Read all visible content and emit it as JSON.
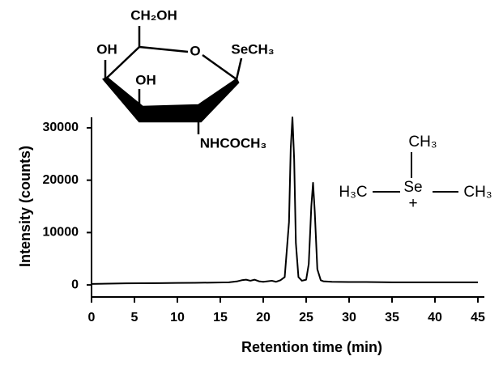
{
  "chart_data": {
    "type": "line",
    "xlabel": "Retention time (min)",
    "ylabel": "Intensity (counts)",
    "x": [
      0,
      2,
      4,
      6,
      8,
      10,
      12,
      14,
      16,
      17,
      17.5,
      18,
      18.5,
      19,
      19.5,
      20,
      21,
      21.5,
      22,
      22.5,
      23,
      23.2,
      23.4,
      23.6,
      23.8,
      24.1,
      24.5,
      25,
      25.3,
      25.6,
      25.8,
      26,
      26.3,
      26.7,
      27,
      28,
      30,
      32,
      35,
      38,
      41,
      43,
      45
    ],
    "series": [
      {
        "name": "Intensity",
        "color": "#000000",
        "values": [
          200,
          250,
          300,
          320,
          350,
          380,
          400,
          450,
          500,
          700,
          900,
          1000,
          800,
          1000,
          700,
          600,
          800,
          600,
          900,
          1500,
          12000,
          26000,
          32000,
          24000,
          8000,
          1500,
          800,
          1000,
          4000,
          15000,
          19500,
          14000,
          3000,
          900,
          700,
          600,
          550,
          550,
          500,
          500,
          500,
          500,
          500
        ]
      }
    ],
    "xlim": [
      0,
      45
    ],
    "ylim": [
      -2300,
      32000
    ],
    "xticks": [
      0,
      5,
      10,
      15,
      20,
      25,
      30,
      35,
      40,
      45
    ],
    "yticks": [
      0,
      10000,
      20000,
      30000
    ],
    "annotations": [
      "CH₂OH",
      "OH",
      "O",
      "SeCH₃",
      "OH",
      "NHCOCH₃",
      "CH₃",
      "H₃C",
      "Se",
      "+",
      "CH₃"
    ]
  }
}
